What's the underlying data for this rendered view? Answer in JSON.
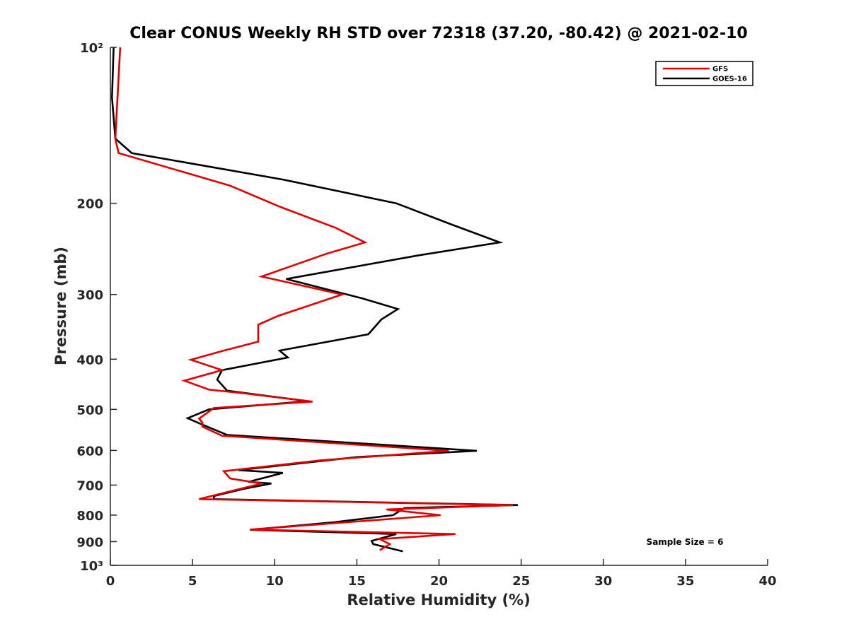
{
  "chart_data": {
    "type": "line",
    "title": "Clear CONUS Weekly RH STD over 72318 (37.20, -80.42) @ 2021-02-10",
    "xlabel": "Relative Humidity (%)",
    "ylabel": "Pressure (mb)",
    "xlim": [
      0,
      40
    ],
    "ylim": [
      100,
      1000
    ],
    "y_scale": "log",
    "y_reversed": true,
    "x_ticks": [
      0,
      5,
      10,
      15,
      20,
      25,
      30,
      35,
      40
    ],
    "x_tick_labels": [
      "0",
      "5",
      "10",
      "15",
      "20",
      "25",
      "30",
      "35",
      "40"
    ],
    "y_ticks": [
      100,
      200,
      300,
      400,
      500,
      600,
      700,
      800,
      900,
      1000
    ],
    "y_tick_labels": [
      "10²",
      "200",
      "300",
      "400",
      "500",
      "600",
      "700",
      "800",
      "900",
      "10³"
    ],
    "grid": false,
    "legend_position": "top-right",
    "annotation": "Sample Size = 6",
    "series": [
      {
        "name": "GFS",
        "color": "#dd0000",
        "points": [
          [
            0.6,
            100
          ],
          [
            0.3,
            150
          ],
          [
            0.5,
            160
          ],
          [
            7.3,
            185
          ],
          [
            10.3,
            203
          ],
          [
            13.7,
            223
          ],
          [
            15.5,
            238
          ],
          [
            13.2,
            250
          ],
          [
            9.2,
            277
          ],
          [
            14.1,
            300
          ],
          [
            10.2,
            330
          ],
          [
            9.0,
            343
          ],
          [
            9.0,
            370
          ],
          [
            6.9,
            385
          ],
          [
            4.9,
            401
          ],
          [
            6.8,
            420
          ],
          [
            4.5,
            440
          ],
          [
            6.0,
            458
          ],
          [
            8.0,
            465
          ],
          [
            12.3,
            483
          ],
          [
            6.3,
            497
          ],
          [
            5.4,
            521
          ],
          [
            5.6,
            530
          ],
          [
            5.6,
            540
          ],
          [
            6.8,
            562
          ],
          [
            20.6,
            601
          ],
          [
            12.8,
            627
          ],
          [
            6.9,
            658
          ],
          [
            7.3,
            680
          ],
          [
            9.2,
            695
          ],
          [
            5.4,
            745
          ],
          [
            24.5,
            765
          ],
          [
            16.8,
            780
          ],
          [
            20.1,
            800
          ],
          [
            8.5,
            853
          ],
          [
            21.0,
            870
          ],
          [
            16.4,
            890
          ],
          [
            17.0,
            910
          ],
          [
            16.4,
            935
          ]
        ]
      },
      {
        "name": "GOES-16",
        "color": "#000000",
        "points": [
          [
            0.2,
            100
          ],
          [
            0.1,
            125
          ],
          [
            0.3,
            150
          ],
          [
            1.3,
            160
          ],
          [
            10.5,
            180
          ],
          [
            17.4,
            200
          ],
          [
            20.8,
            220
          ],
          [
            23.7,
            238
          ],
          [
            18.8,
            252
          ],
          [
            10.7,
            280
          ],
          [
            15.3,
            305
          ],
          [
            17.5,
            320
          ],
          [
            16.5,
            335
          ],
          [
            15.7,
            358
          ],
          [
            10.3,
            385
          ],
          [
            10.8,
            397
          ],
          [
            6.8,
            420
          ],
          [
            6.5,
            438
          ],
          [
            7.1,
            460
          ],
          [
            12.0,
            482
          ],
          [
            6.0,
            500
          ],
          [
            4.7,
            520
          ],
          [
            5.6,
            535
          ],
          [
            7.1,
            560
          ],
          [
            22.3,
            601
          ],
          [
            15.0,
            618
          ],
          [
            7.8,
            655
          ],
          [
            10.5,
            663
          ],
          [
            8.4,
            690
          ],
          [
            9.8,
            695
          ],
          [
            8.1,
            712
          ],
          [
            6.3,
            735
          ],
          [
            6.3,
            745
          ],
          [
            24.8,
            765
          ],
          [
            17.9,
            775
          ],
          [
            17.2,
            800
          ],
          [
            13.6,
            826
          ],
          [
            8.5,
            854
          ],
          [
            17.4,
            870
          ],
          [
            15.9,
            897
          ],
          [
            16.0,
            910
          ],
          [
            17.8,
            940
          ]
        ]
      }
    ]
  }
}
